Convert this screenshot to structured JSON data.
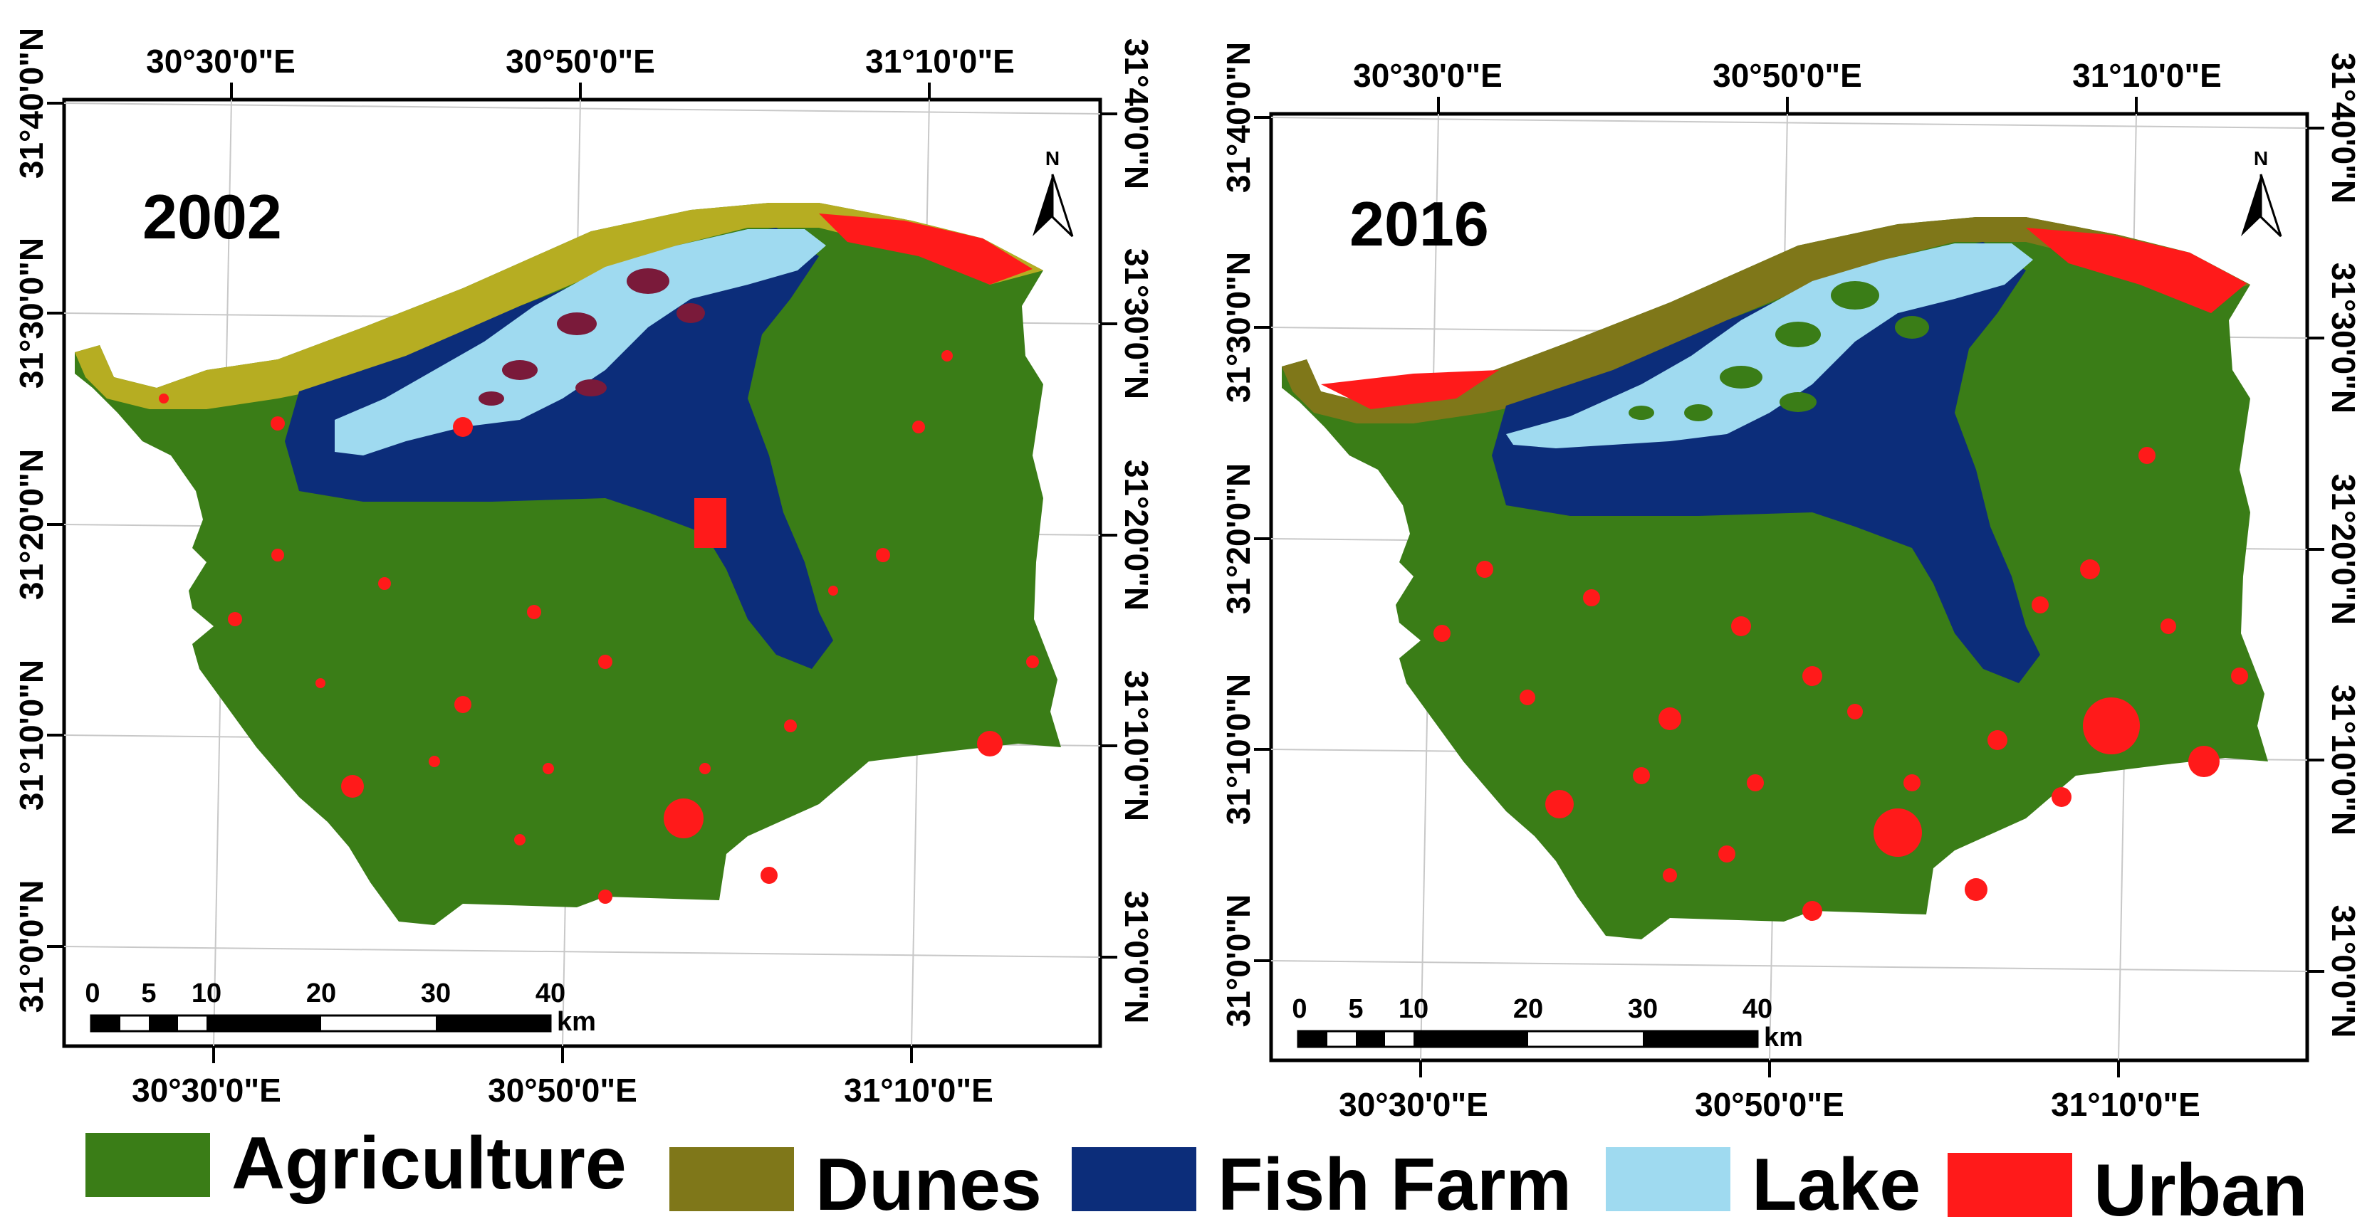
{
  "panels": [
    {
      "year": "2002",
      "top_labels": [
        "30°30'0\"E",
        "30°50'0\"E",
        "31°10'0\"E"
      ],
      "bottom_labels": [
        "30°30'0\"E",
        "30°50'0\"E",
        "31°10'0\"E"
      ],
      "left_labels": [
        "31°40'0\"N",
        "31°30'0\"N",
        "31°20'0\"N",
        "31°10'0\"N",
        "31°0'0\"N"
      ],
      "right_labels": [
        "31°40'0\"N",
        "31°30'0\"N",
        "31°20'0\"N",
        "31°10'0\"N",
        "31°0'0\"N"
      ],
      "north_label": "N",
      "scale_ticks": [
        "0",
        "5",
        "10",
        "20",
        "30",
        "40"
      ],
      "scale_unit": "km"
    },
    {
      "year": "2016",
      "top_labels": [
        "30°30'0\"E",
        "30°50'0\"E",
        "31°10'0\"E"
      ],
      "bottom_labels": [
        "30°30'0\"E",
        "30°50'0\"E",
        "31°10'0\"E"
      ],
      "left_labels": [
        "31°40'0\"N",
        "31°30'0\"N",
        "31°20'0\"N",
        "31°10'0\"N",
        "31°0'0\"N"
      ],
      "right_labels": [
        "31°40'0\"N",
        "31°30'0\"N",
        "31°20'0\"N",
        "31°10'0\"N",
        "31°0'0\"N"
      ],
      "north_label": "N",
      "scale_ticks": [
        "0",
        "5",
        "10",
        "20",
        "30",
        "40"
      ],
      "scale_unit": "km"
    }
  ],
  "legend": [
    {
      "label": "Agriculture",
      "color": "#3a7d17"
    },
    {
      "label": "Dunes",
      "color": "#7f7719"
    },
    {
      "label": "Fish Farm",
      "color": "#0c2d7a"
    },
    {
      "label": "Lake",
      "color": "#9fdaf0"
    },
    {
      "label": "Urban",
      "color": "#ff1a1a"
    }
  ],
  "colors": {
    "agriculture": "#3a7d17",
    "dunes_2002": "#b6ad22",
    "dunes_2016": "#7f7719",
    "fish_farm": "#0c2d7a",
    "lake": "#9fdaf0",
    "urban": "#ff1a1a"
  }
}
